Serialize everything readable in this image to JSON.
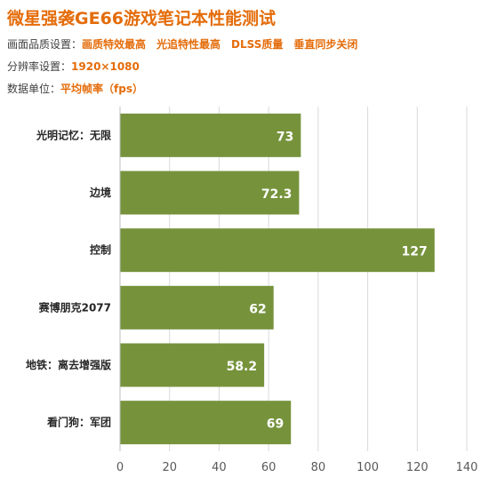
{
  "header": {
    "title": "微星强袭GE66游戏笔记本性能测试",
    "settings": [
      {
        "label": "画面品质设置：",
        "value": "画质特效最高　光追特性最高　DLSS质量　垂直同步关闭"
      },
      {
        "label": "分辨率设置：",
        "value": "1920×1080"
      },
      {
        "label": "数据单位：",
        "value": "平均帧率（fps）"
      }
    ]
  },
  "colors": {
    "accent": "#e46c0a",
    "bar": "#76933c",
    "bar_label": "#ffffff",
    "grid": "#d9d9d9"
  },
  "chart_data": {
    "type": "bar",
    "orientation": "horizontal",
    "categories": [
      "光明记忆：无限",
      "边境",
      "控制",
      "赛博朋克2077",
      "地铁：离去增强版",
      "看门狗：军团"
    ],
    "values": [
      73,
      72.3,
      127,
      62,
      58.2,
      69
    ],
    "value_labels": [
      "73",
      "72.3",
      "127",
      "62",
      "58.2",
      "69"
    ],
    "xlim": [
      0,
      140
    ],
    "xticks": [
      0,
      20,
      40,
      60,
      80,
      100,
      120,
      140
    ],
    "grid": true,
    "legend": "none"
  }
}
